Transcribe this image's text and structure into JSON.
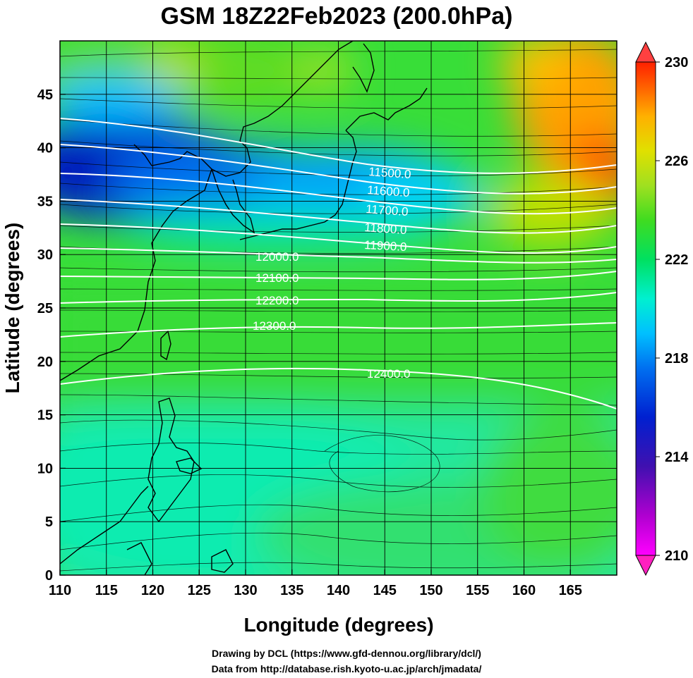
{
  "title": "GSM 18Z22Feb2023 (200.0hPa)",
  "xlabel": "Longitude (degrees)",
  "ylabel": "Latitude  (degrees)",
  "credits": {
    "drawing": "Drawing by DCL (https://www.gfd-dennou.org/library/dcl/)",
    "data": "Data from http://database.rish.kyoto-u.ac.jp/arch/jmadata/"
  },
  "chart_data": {
    "type": "heatmap",
    "x_range": [
      110,
      170
    ],
    "y_range": [
      0,
      50
    ],
    "x_ticks": [
      "110",
      "115",
      "120",
      "125",
      "130",
      "135",
      "140",
      "145",
      "150",
      "155",
      "160",
      "165"
    ],
    "y_ticks": [
      "0",
      "5",
      "10",
      "15",
      "20",
      "25",
      "30",
      "35",
      "40",
      "45"
    ],
    "colorbar": {
      "range": [
        210,
        230
      ],
      "tick_labels": [
        "230",
        "226",
        "222",
        "218",
        "214",
        "210"
      ],
      "colors": [
        "#ff00ff",
        "#b000d0",
        "#4010b0",
        "#0020d0",
        "#0070f0",
        "#00c0ff",
        "#00f0d0",
        "#00e060",
        "#40dc20",
        "#a0e020",
        "#e0e000",
        "#ffb000",
        "#ff6000",
        "#ff2000"
      ]
    },
    "contours": [
      {
        "label": "11500.0",
        "value": 11500
      },
      {
        "label": "11600.0",
        "value": 11600
      },
      {
        "label": "11700.0",
        "value": 11700
      },
      {
        "label": "11800.0",
        "value": 11800
      },
      {
        "label": "11900.0",
        "value": 11900
      },
      {
        "label": "12000.0",
        "value": 12000
      },
      {
        "label": "12100.0",
        "value": 12100
      },
      {
        "label": "12200.0",
        "value": 12200
      },
      {
        "label": "12300.0",
        "value": 12300
      },
      {
        "label": "12400.0",
        "value": 12400
      }
    ],
    "grid": true
  }
}
